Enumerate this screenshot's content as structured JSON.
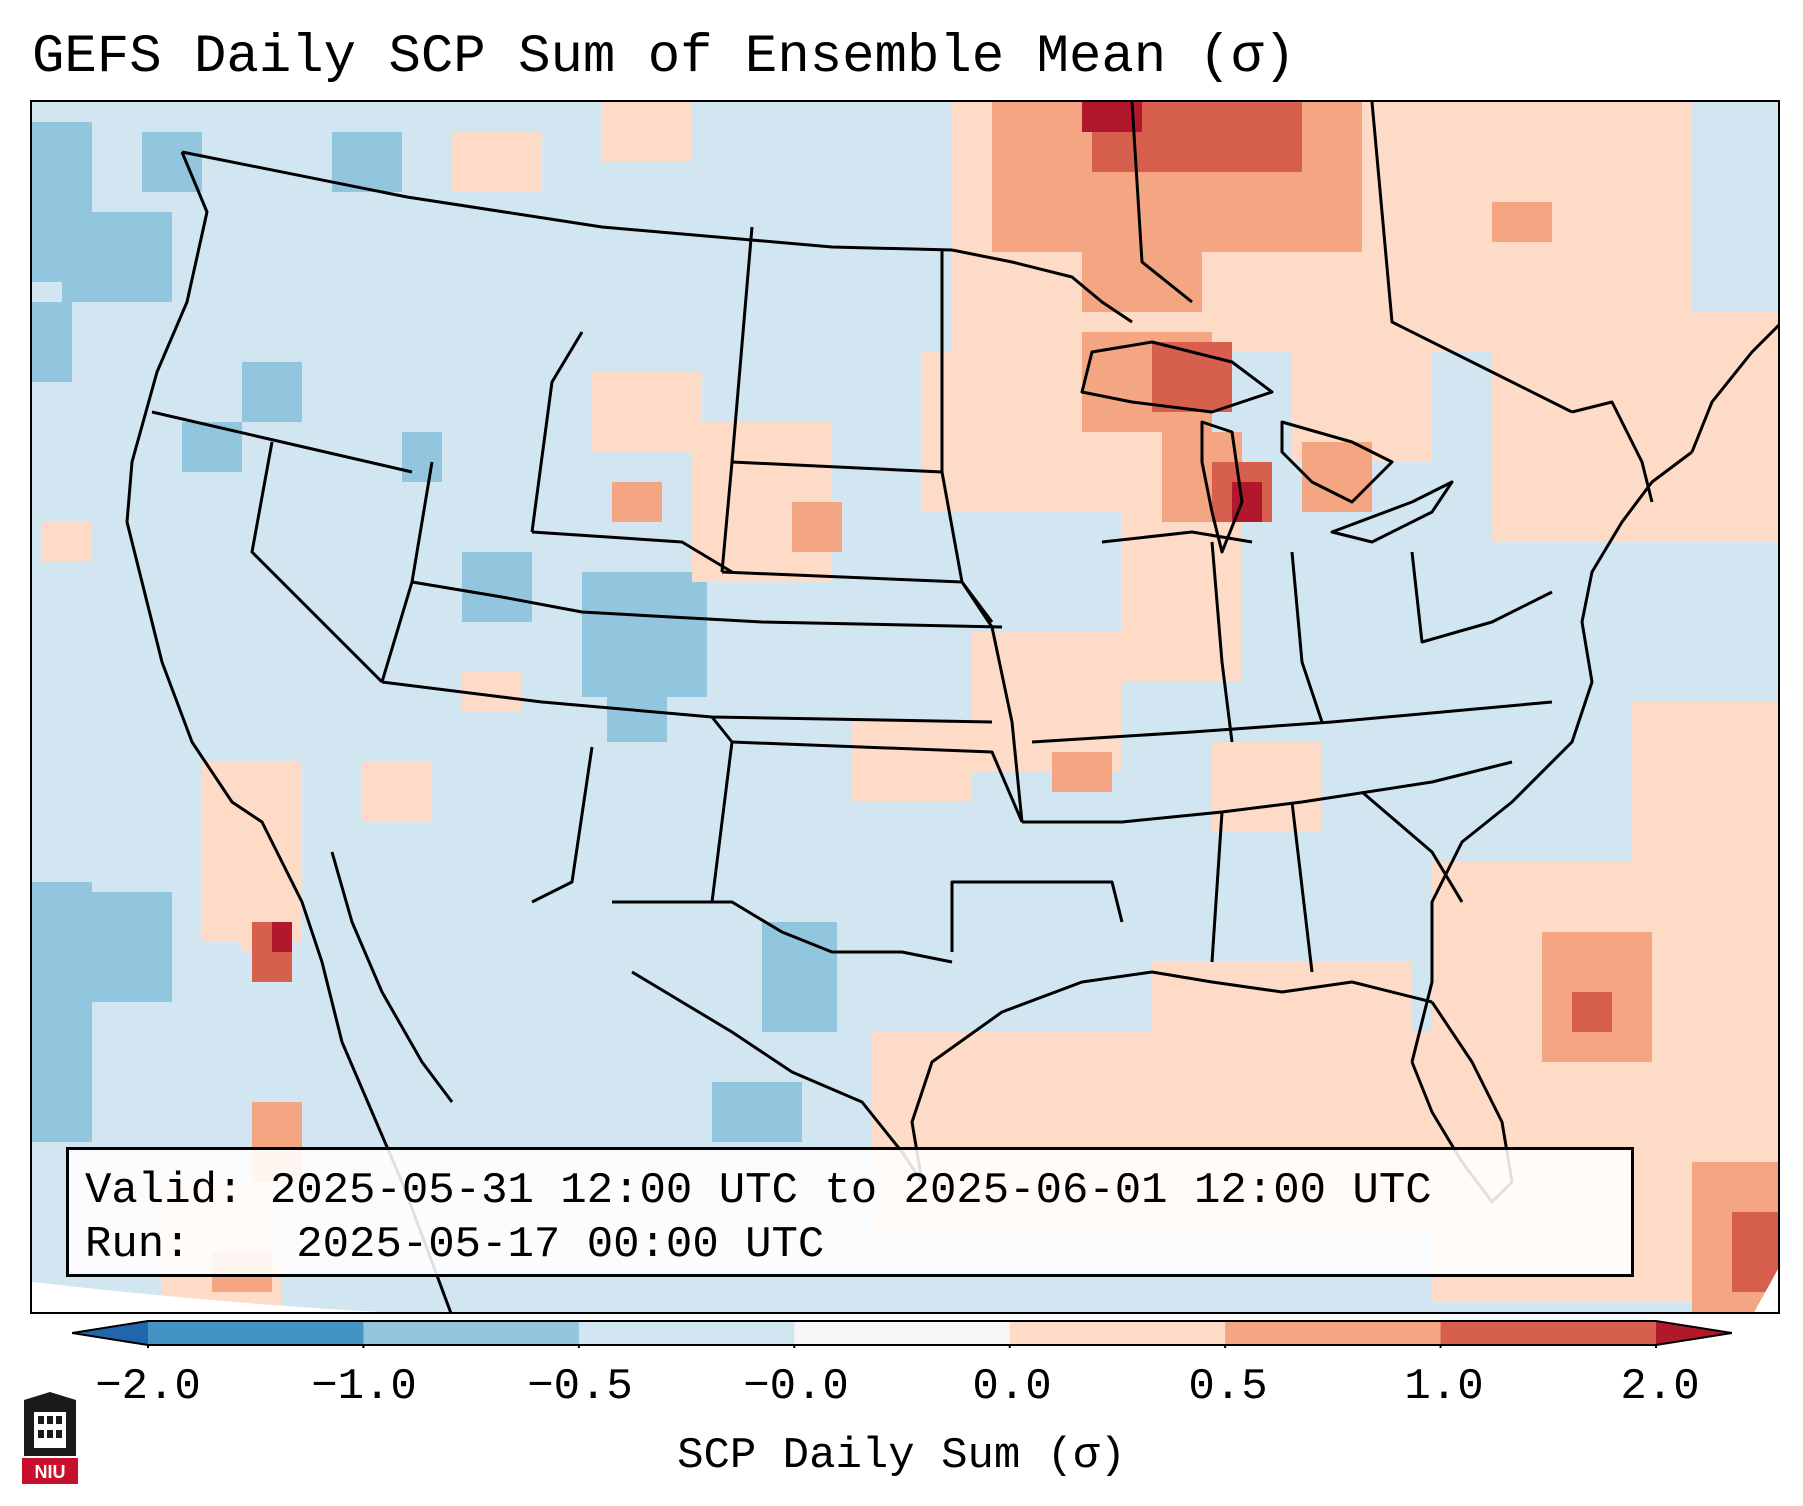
{
  "title": "GEFS Daily SCP Sum of Ensemble Mean (σ)",
  "info": {
    "valid_label": "Valid:",
    "valid_value": "2025-05-31 12:00 UTC to 2025-06-01 12:00 UTC",
    "run_label": "Run:",
    "run_value": "2025-05-17 00:00 UTC"
  },
  "colorbar": {
    "label": "SCP Daily Sum (σ)",
    "ticks": [
      "−2.0",
      "−1.0",
      "−0.5",
      "−0.0",
      "0.0",
      "0.5",
      "1.0",
      "2.0"
    ],
    "bins": [
      {
        "range": [
          -2.0,
          -1.0
        ],
        "color": "#4393c3"
      },
      {
        "range": [
          -1.0,
          -0.5
        ],
        "color": "#92c5de"
      },
      {
        "range": [
          -0.5,
          0.0
        ],
        "color": "#d1e5f0"
      },
      {
        "range": [
          0.0,
          0.0
        ],
        "color": "#f7f7f7"
      },
      {
        "range": [
          0.0,
          0.5
        ],
        "color": "#fddbc7"
      },
      {
        "range": [
          0.5,
          1.0
        ],
        "color": "#f4a582"
      },
      {
        "range": [
          1.0,
          2.0
        ],
        "color": "#d6604d"
      }
    ],
    "under_color": "#2166ac",
    "over_color": "#b2182b"
  },
  "map": {
    "ocean_background": "#d2e6f1",
    "field_colors": {
      "neg_moderate": "#92c5de",
      "pos_weak": "#fddbc7",
      "pos_moderate": "#f4a582",
      "pos_strong": "#d6604d",
      "pos_extreme": "#b2182b"
    }
  },
  "logo": {
    "text": "NIU",
    "color": "#c8102e"
  }
}
